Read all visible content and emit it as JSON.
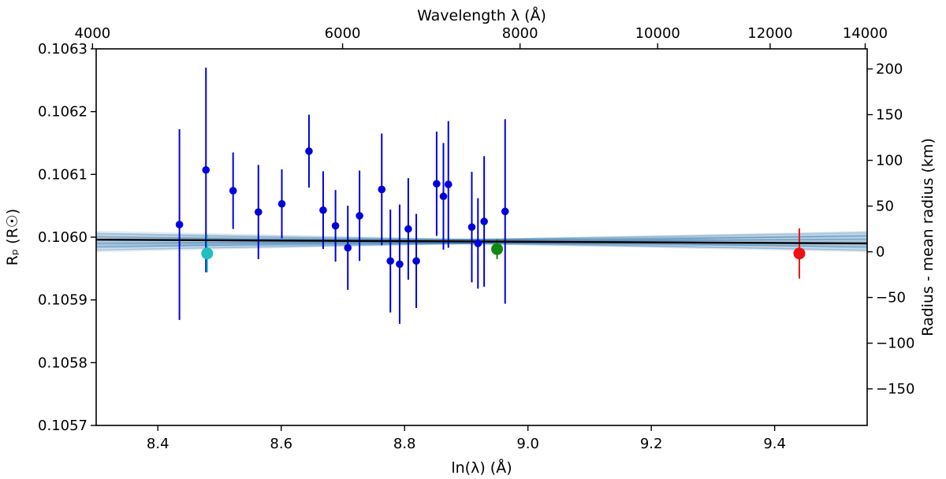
{
  "chart_data": {
    "type": "scatter",
    "title": "",
    "xlabel": "ln(λ) (Å)",
    "ylabel": "Rₚ (R☉)",
    "top_xlabel": "Wavelength λ (Å)",
    "right_ylabel": "Radius - mean radius (km)",
    "xlim": [
      8.3,
      9.55
    ],
    "ylim": [
      0.1057,
      0.1063
    ],
    "right_ylim": [
      -190,
      222
    ],
    "x_ticks": [
      8.4,
      8.6,
      8.8,
      9.0,
      9.2,
      9.4
    ],
    "x_tick_labels": [
      "8.4",
      "8.6",
      "8.8",
      "9.0",
      "9.2",
      "9.4"
    ],
    "y_ticks": [
      0.1057,
      0.1058,
      0.1059,
      0.106,
      0.1061,
      0.1062,
      0.1063
    ],
    "y_tick_labels": [
      "0.1057",
      "0.1058",
      "0.1059",
      "0.1060",
      "0.1061",
      "0.1062",
      "0.1063"
    ],
    "top_ticks": [
      4000,
      6000,
      8000,
      10000,
      12000,
      14000
    ],
    "top_tick_labels": [
      "4000",
      "6000",
      "8000",
      "10000",
      "12000",
      "14000"
    ],
    "right_ticks": [
      -150,
      -100,
      -50,
      0,
      50,
      100,
      150,
      200
    ],
    "right_tick_labels": [
      "−150",
      "−100",
      "−50",
      "0",
      "50",
      "100",
      "150",
      "200"
    ],
    "fit_line": {
      "x": [
        8.3,
        9.55
      ],
      "y": [
        0.105996,
        0.10599
      ],
      "color": "#000000"
    },
    "posterior_fan": {
      "count": 60,
      "pivot_x": 8.9,
      "pivot_y": 0.105993,
      "slope_spread": 2.2e-05,
      "color": "#4682b4"
    },
    "series": [
      {
        "name": "Blue channels",
        "color": "#0000dd",
        "points": [
          {
            "x": 8.435,
            "y": 0.10602,
            "err": 0.000152
          },
          {
            "x": 8.478,
            "y": 0.106107,
            "err": 0.000163
          },
          {
            "x": 8.522,
            "y": 0.106074,
            "err": 6.1e-05
          },
          {
            "x": 8.563,
            "y": 0.10604,
            "err": 7.5e-05
          },
          {
            "x": 8.601,
            "y": 0.106053,
            "err": 5.5e-05
          },
          {
            "x": 8.645,
            "y": 0.106137,
            "err": 5.8e-05
          },
          {
            "x": 8.668,
            "y": 0.106043,
            "err": 6.2e-05
          },
          {
            "x": 8.688,
            "y": 0.106018,
            "err": 5.7e-05
          },
          {
            "x": 8.708,
            "y": 0.105983,
            "err": 6.7e-05
          },
          {
            "x": 8.727,
            "y": 0.106034,
            "err": 7.2e-05
          },
          {
            "x": 8.763,
            "y": 0.106076,
            "err": 8.9e-05
          },
          {
            "x": 8.777,
            "y": 0.105962,
            "err": 8.2e-05
          },
          {
            "x": 8.792,
            "y": 0.105957,
            "err": 9.5e-05
          },
          {
            "x": 8.806,
            "y": 0.106013,
            "err": 8.1e-05
          },
          {
            "x": 8.819,
            "y": 0.105962,
            "err": 7.5e-05
          },
          {
            "x": 8.852,
            "y": 0.106085,
            "err": 8.3e-05
          },
          {
            "x": 8.863,
            "y": 0.106065,
            "err": 8.5e-05
          },
          {
            "x": 8.871,
            "y": 0.106084,
            "err": 0.000101
          },
          {
            "x": 8.909,
            "y": 0.106016,
            "err": 8.8e-05
          },
          {
            "x": 8.919,
            "y": 0.10599,
            "err": 7.2e-05
          },
          {
            "x": 8.929,
            "y": 0.106025,
            "err": 0.000104
          },
          {
            "x": 8.963,
            "y": 0.106041,
            "err": 0.000147
          }
        ]
      },
      {
        "name": "Cyan point",
        "color": "#1fbfbf",
        "points": [
          {
            "x": 8.48,
            "y": 0.105974,
            "err": 3e-05
          }
        ]
      },
      {
        "name": "Green point",
        "color": "#118811",
        "points": [
          {
            "x": 8.95,
            "y": 0.105981,
            "err": 1.6e-05
          }
        ]
      },
      {
        "name": "Red point",
        "color": "#ee1111",
        "points": [
          {
            "x": 9.44,
            "y": 0.105974,
            "err": 4e-05
          }
        ]
      }
    ]
  }
}
